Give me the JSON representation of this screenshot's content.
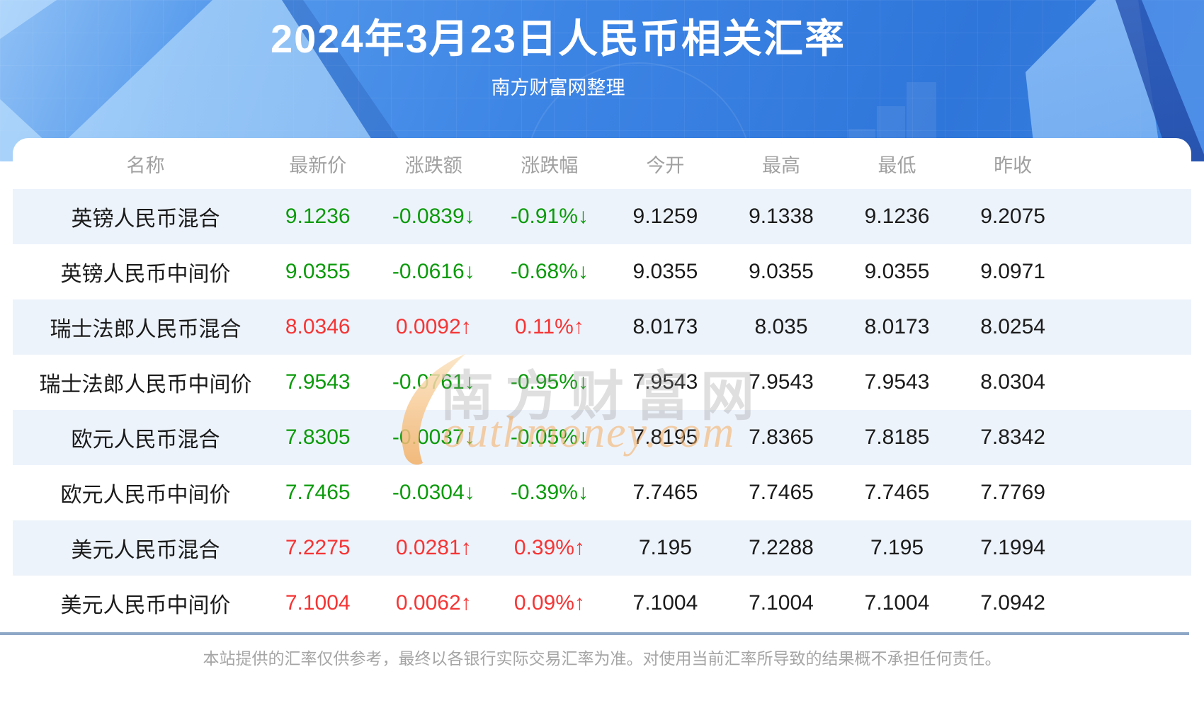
{
  "banner": {
    "title": "2024年3月23日人民币相关汇率",
    "subtitle": "南方财富网整理"
  },
  "watermark": {
    "cn": "南方财富网",
    "en": "outhmoney.com"
  },
  "chart_data": {
    "type": "table",
    "title": "2024年3月23日人民币相关汇率",
    "subtitle": "南方财富网整理",
    "columns": [
      "名称",
      "最新价",
      "涨跌额",
      "涨跌幅",
      "今开",
      "最高",
      "最低",
      "昨收"
    ],
    "rows": [
      {
        "name": "英镑人民币混合",
        "values": [
          "9.1236",
          "-0.0839↓",
          "-0.91%↓",
          "9.1259",
          "9.1338",
          "9.1236",
          "9.2075"
        ],
        "trend": "down"
      },
      {
        "name": "英镑人民币中间价",
        "values": [
          "9.0355",
          "-0.0616↓",
          "-0.68%↓",
          "9.0355",
          "9.0355",
          "9.0355",
          "9.0971"
        ],
        "trend": "down"
      },
      {
        "name": "瑞士法郎人民币混合",
        "values": [
          "8.0346",
          "0.0092↑",
          "0.11%↑",
          "8.0173",
          "8.035",
          "8.0173",
          "8.0254"
        ],
        "trend": "up"
      },
      {
        "name": "瑞士法郎人民币中间价",
        "values": [
          "7.9543",
          "-0.0761↓",
          "-0.95%↓",
          "7.9543",
          "7.9543",
          "7.9543",
          "8.0304"
        ],
        "trend": "down"
      },
      {
        "name": "欧元人民币混合",
        "values": [
          "7.8305",
          "-0.0037↓",
          "-0.05%↓",
          "7.8195",
          "7.8365",
          "7.8185",
          "7.8342"
        ],
        "trend": "down"
      },
      {
        "name": "欧元人民币中间价",
        "values": [
          "7.7465",
          "-0.0304↓",
          "-0.39%↓",
          "7.7465",
          "7.7465",
          "7.7465",
          "7.7769"
        ],
        "trend": "down"
      },
      {
        "name": "美元人民币混合",
        "values": [
          "7.2275",
          "0.0281↑",
          "0.39%↑",
          "7.195",
          "7.2288",
          "7.195",
          "7.1994"
        ],
        "trend": "up"
      },
      {
        "name": "美元人民币中间价",
        "values": [
          "7.1004",
          "0.0062↑",
          "0.09%↑",
          "7.1004",
          "7.1004",
          "7.1004",
          "7.0942"
        ],
        "trend": "up"
      }
    ],
    "colors": {
      "up": "#f53535",
      "down": "#0a9b0a",
      "value_text": "#1b1b1b",
      "header_text": "#a0a0a0",
      "alt_row_bg": "#edf3fb",
      "banner_blue": "#3d85e5",
      "divider": "#8da7c7",
      "watermark_orange": "#f4ac5e"
    },
    "layout": {
      "grid": false,
      "alt_rows": true,
      "legend": "none"
    }
  },
  "footer": {
    "disclaimer": "本站提供的汇率仅供参考，最终以各银行实际交易汇率为准。对使用当前汇率所导致的结果概不承担任何责任。"
  }
}
